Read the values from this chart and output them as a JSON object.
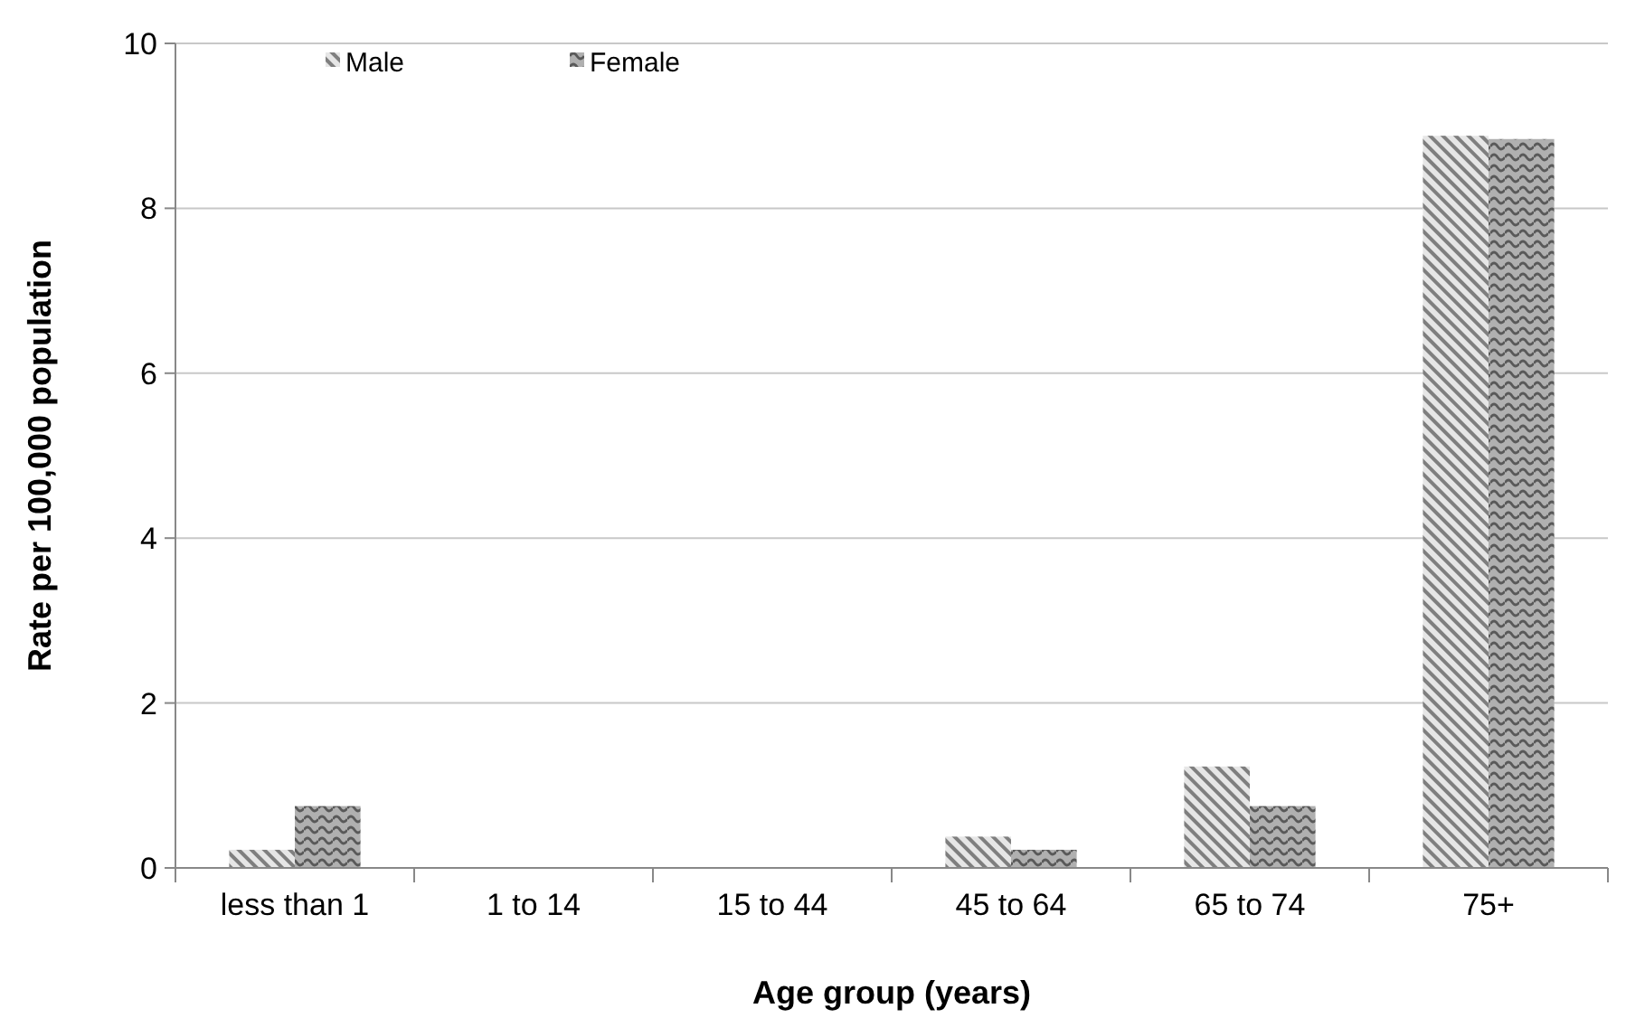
{
  "chart_data": {
    "type": "bar",
    "xlabel": "Age group (years)",
    "ylabel": "Rate per 100,000 population",
    "categories": [
      "less than 1",
      "1 to 14",
      "15 to 44",
      "45 to 64",
      "65 to 74",
      "75+"
    ],
    "series": [
      {
        "name": "Male",
        "color": "#7f7f7f",
        "values": [
          0.22,
          0,
          0,
          0.38,
          1.23,
          8.88
        ]
      },
      {
        "name": "Female",
        "color": "#595959",
        "values": [
          0.75,
          0,
          0,
          0.22,
          0.75,
          8.84
        ]
      }
    ],
    "ylim": [
      0,
      10
    ],
    "yticks": [
      0,
      2,
      4,
      6,
      8,
      10
    ],
    "grid": "y",
    "legend": "top left"
  }
}
